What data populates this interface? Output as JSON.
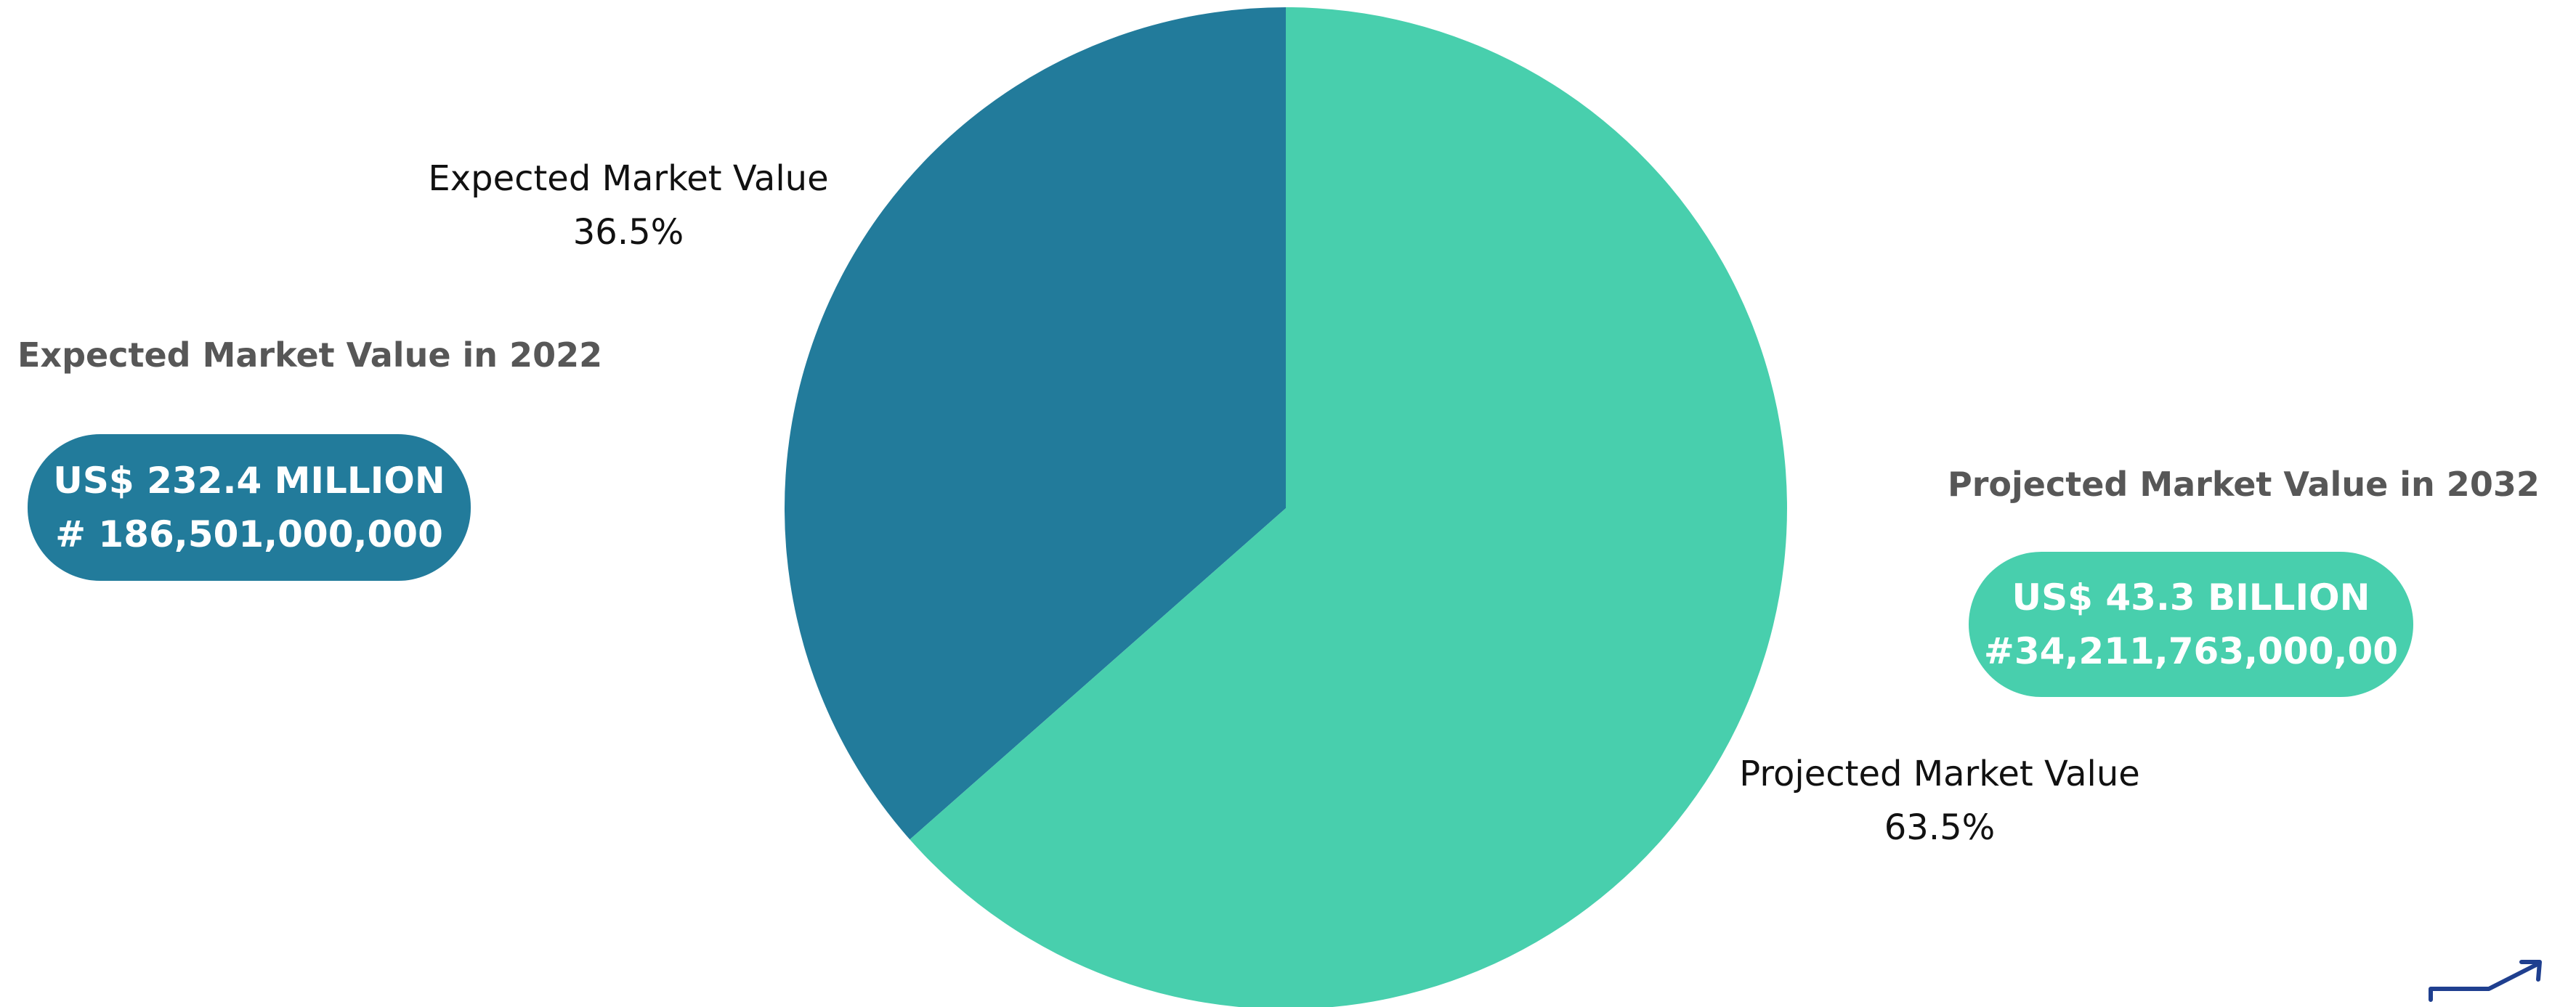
{
  "chart_data": {
    "type": "pie",
    "categories": [
      "Expected Market Value",
      "Projected Market Value"
    ],
    "values": [
      36.5,
      63.5
    ],
    "value_labels": [
      "36.5%",
      "63.5%"
    ],
    "colors": [
      "#227b9b",
      "#48cfad"
    ],
    "start_angle_deg": 0,
    "direction": "counterclockwise",
    "legend": "none"
  },
  "left_panel": {
    "heading": "Expected Market Value in 2022",
    "line1": "US$ 232.4 MILLION",
    "line2": "# 186,501,000,000",
    "color": "#227b9b"
  },
  "right_panel": {
    "heading": "Projected Market Value in 2032",
    "line1": "US$ 43.3 BILLION",
    "line2": "#34,211,763,000,00",
    "color": "#48cfad"
  },
  "logo": {
    "icon": "growth-arrow-icon",
    "color": "#1f3f8f"
  }
}
